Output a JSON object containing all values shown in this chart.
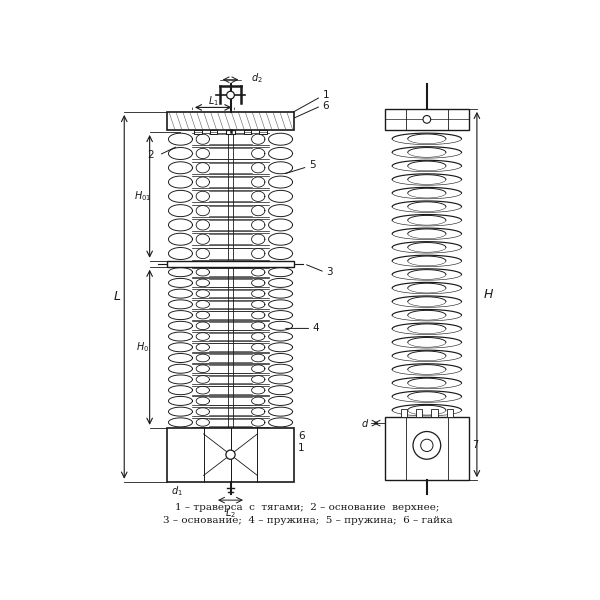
{
  "bg_color": "#ffffff",
  "line_color": "#1a1a1a",
  "caption_line1": "1 – траверса  с  тягами;  2 – основание  верхнее;",
  "caption_line2": "3 – основание;  4 – пружина;  5 – пружина;  6 – гайка"
}
